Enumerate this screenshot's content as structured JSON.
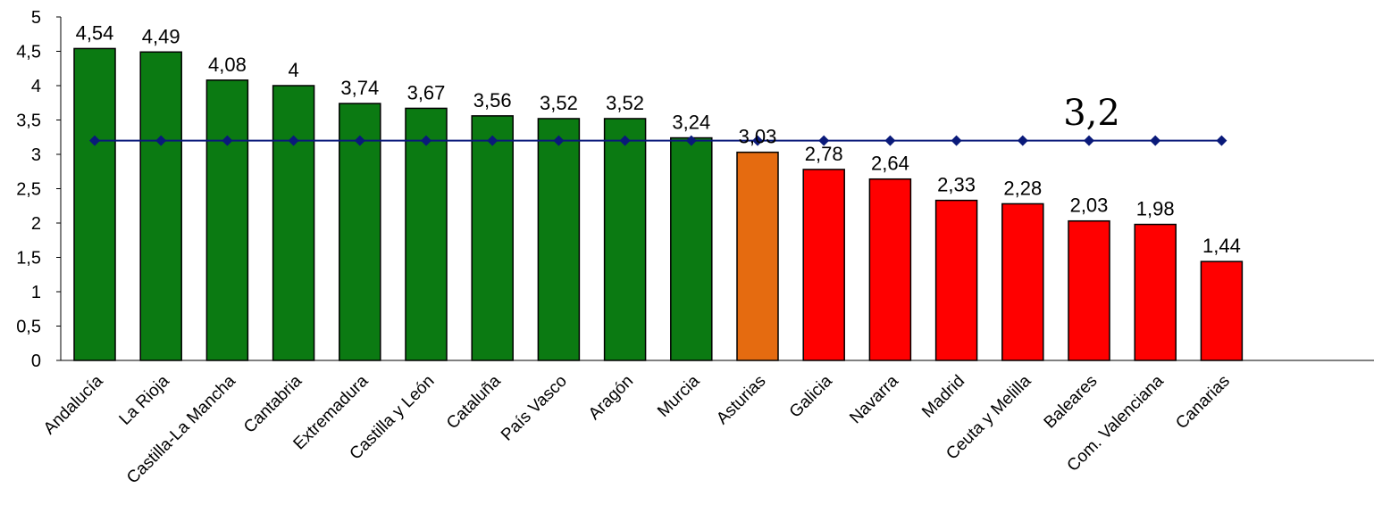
{
  "chart_data": {
    "type": "bar",
    "categories": [
      "Andalucía",
      "La Rioja",
      "Castilla-La Mancha",
      "Cantabria",
      "Extremadura",
      "Castilla y León",
      "Cataluña",
      "País Vasco",
      "Aragón",
      "Murcia",
      "Asturias",
      "Galicia",
      "Navarra",
      "Madrid",
      "Ceuta y Melilla",
      "Baleares",
      "Com. Valenciana",
      "Canarias"
    ],
    "values": [
      4.54,
      4.49,
      4.08,
      4.0,
      3.74,
      3.67,
      3.56,
      3.52,
      3.52,
      3.24,
      3.03,
      2.78,
      2.64,
      2.33,
      2.28,
      2.03,
      1.98,
      1.44
    ],
    "value_labels": [
      "4,54",
      "4,49",
      "4,08",
      "4",
      "3,74",
      "3,67",
      "3,56",
      "3,52",
      "3,52",
      "3,24",
      "3,03",
      "2,78",
      "2,64",
      "2,33",
      "2,28",
      "2,03",
      "1,98",
      "1,44"
    ],
    "bar_colors": [
      "#0b7a12",
      "#0b7a12",
      "#0b7a12",
      "#0b7a12",
      "#0b7a12",
      "#0b7a12",
      "#0b7a12",
      "#0b7a12",
      "#0b7a12",
      "#0b7a12",
      "#e56b10",
      "#ff0000",
      "#ff0000",
      "#ff0000",
      "#ff0000",
      "#ff0000",
      "#ff0000",
      "#ff0000"
    ],
    "ylim": [
      0,
      5
    ],
    "yticks": [
      0,
      0.5,
      1,
      1.5,
      2,
      2.5,
      3,
      3.5,
      4,
      4.5,
      5
    ],
    "ytick_labels": [
      "0",
      "0,5",
      "1",
      "1,5",
      "2",
      "2,5",
      "3",
      "3,5",
      "4",
      "4,5",
      "5"
    ],
    "average": {
      "value": 3.2,
      "label": "3,2",
      "color": "#0a1a7a",
      "marker": "diamond"
    },
    "grid": false,
    "legend": "none"
  }
}
